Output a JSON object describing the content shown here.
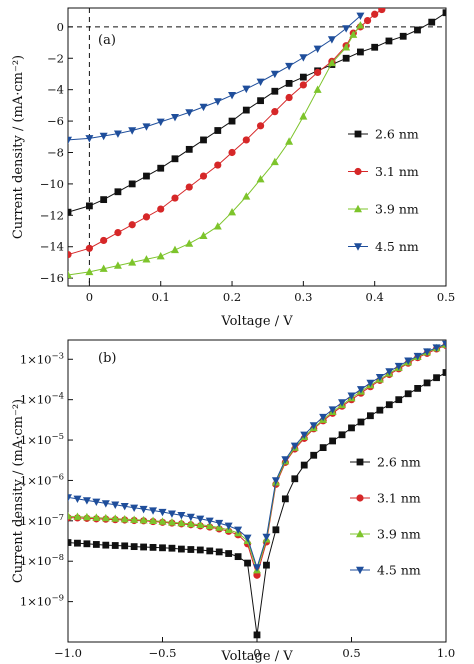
{
  "chart_data": [
    {
      "type": "line",
      "panel_label": "(a)",
      "xlabel": "Voltage / V",
      "ylabel": "Current density / (mA·cm⁻²)",
      "xlim": [
        -0.03,
        0.5
      ],
      "ylim": [
        -16.5,
        1.2
      ],
      "x_ticks": [
        0,
        0.1,
        0.2,
        0.3,
        0.4,
        0.5
      ],
      "x_tick_labels": [
        "0",
        "0.1",
        "0.2",
        "0.3",
        "0.4",
        "0.5"
      ],
      "y_ticks": [
        -16,
        -14,
        -12,
        -10,
        -8,
        -6,
        -4,
        -2,
        0
      ],
      "y_tick_labels": [
        "−16",
        "−14",
        "−12",
        "−10",
        "−8",
        "−6",
        "−4",
        "−2",
        "0"
      ],
      "grid": false,
      "reference_lines": [
        "x=0 dashed",
        "y=0 dashed"
      ],
      "legend_position": "right",
      "series": [
        {
          "name": "2.6 nm",
          "color": "#111111",
          "marker": "square",
          "x": [
            -0.03,
            0.0,
            0.02,
            0.04,
            0.06,
            0.08,
            0.1,
            0.12,
            0.14,
            0.16,
            0.18,
            0.2,
            0.22,
            0.24,
            0.26,
            0.28,
            0.3,
            0.32,
            0.34,
            0.36,
            0.38,
            0.4,
            0.42,
            0.44,
            0.46,
            0.48,
            0.5
          ],
          "y": [
            -11.8,
            -11.4,
            -11.0,
            -10.5,
            -10.0,
            -9.5,
            -9.0,
            -8.4,
            -7.8,
            -7.2,
            -6.6,
            -6.0,
            -5.3,
            -4.7,
            -4.1,
            -3.6,
            -3.2,
            -2.8,
            -2.4,
            -2.0,
            -1.6,
            -1.3,
            -0.9,
            -0.6,
            -0.2,
            0.3,
            0.9
          ]
        },
        {
          "name": "3.1 nm",
          "color": "#d62728",
          "marker": "circle",
          "x": [
            -0.03,
            0.0,
            0.02,
            0.04,
            0.06,
            0.08,
            0.1,
            0.12,
            0.14,
            0.16,
            0.18,
            0.2,
            0.22,
            0.24,
            0.26,
            0.28,
            0.3,
            0.32,
            0.34,
            0.36,
            0.37,
            0.38,
            0.39,
            0.4,
            0.41
          ],
          "y": [
            -14.5,
            -14.1,
            -13.6,
            -13.1,
            -12.6,
            -12.1,
            -11.6,
            -10.9,
            -10.2,
            -9.5,
            -8.8,
            -8.0,
            -7.2,
            -6.3,
            -5.4,
            -4.5,
            -3.7,
            -2.9,
            -2.2,
            -1.2,
            -0.4,
            0.0,
            0.4,
            0.8,
            1.1
          ]
        },
        {
          "name": "3.9 nm",
          "color": "#7dc42b",
          "marker": "triangle-up",
          "x": [
            -0.03,
            0.0,
            0.02,
            0.04,
            0.06,
            0.08,
            0.1,
            0.12,
            0.14,
            0.16,
            0.18,
            0.2,
            0.22,
            0.24,
            0.26,
            0.28,
            0.3,
            0.32,
            0.34,
            0.36,
            0.37,
            0.38
          ],
          "y": [
            -15.8,
            -15.6,
            -15.4,
            -15.2,
            -15.0,
            -14.8,
            -14.6,
            -14.2,
            -13.8,
            -13.3,
            -12.7,
            -11.8,
            -10.8,
            -9.7,
            -8.6,
            -7.3,
            -5.7,
            -4.0,
            -2.3,
            -1.3,
            -0.5,
            0.1
          ]
        },
        {
          "name": "4.5 nm",
          "color": "#1f4e9b",
          "marker": "triangle-down",
          "x": [
            -0.03,
            0.0,
            0.02,
            0.04,
            0.06,
            0.08,
            0.1,
            0.12,
            0.14,
            0.16,
            0.18,
            0.2,
            0.22,
            0.24,
            0.26,
            0.28,
            0.3,
            0.32,
            0.34,
            0.36,
            0.38
          ],
          "y": [
            -7.2,
            -7.1,
            -6.95,
            -6.8,
            -6.6,
            -6.35,
            -6.05,
            -5.75,
            -5.45,
            -5.1,
            -4.75,
            -4.35,
            -3.95,
            -3.5,
            -3.0,
            -2.5,
            -1.95,
            -1.4,
            -0.8,
            -0.1,
            0.7
          ]
        }
      ]
    },
    {
      "type": "line",
      "panel_label": "(b)",
      "xlabel": "Voltage / V",
      "ylabel": "Current density / (mA·cm⁻²)",
      "xlim": [
        -1.0,
        1.0
      ],
      "y_scale": "log",
      "ylim": [
        1e-10,
        0.003
      ],
      "x_ticks": [
        -1.0,
        -0.5,
        0.0,
        0.5,
        1.0
      ],
      "x_tick_labels": [
        "−1.0",
        "−0.5",
        "0",
        "0.5",
        "1.0"
      ],
      "y_ticks": [
        1e-09,
        1e-08,
        1e-07,
        1e-06,
        1e-05,
        0.0001,
        0.001
      ],
      "y_tick_bases": [
        "1×10",
        "1×10",
        "1×10",
        "1×10",
        "1×10",
        "1×10",
        "1×10"
      ],
      "y_tick_exponents": [
        "−9",
        "−8",
        "−7",
        "−6",
        "−5",
        "−4",
        "−3"
      ],
      "grid": false,
      "legend_position": "right",
      "series": [
        {
          "name": "2.6 nm",
          "color": "#111111",
          "marker": "square",
          "x": [
            -1.0,
            -0.95,
            -0.9,
            -0.85,
            -0.8,
            -0.75,
            -0.7,
            -0.65,
            -0.6,
            -0.55,
            -0.5,
            -0.45,
            -0.4,
            -0.35,
            -0.3,
            -0.25,
            -0.2,
            -0.15,
            -0.1,
            -0.05,
            0.0,
            0.05,
            0.1,
            0.15,
            0.2,
            0.25,
            0.3,
            0.35,
            0.4,
            0.45,
            0.5,
            0.55,
            0.6,
            0.65,
            0.7,
            0.75,
            0.8,
            0.85,
            0.9,
            0.95,
            1.0
          ],
          "y": [
            2.9e-08,
            2.8e-08,
            2.7e-08,
            2.6e-08,
            2.5e-08,
            2.45e-08,
            2.4e-08,
            2.3e-08,
            2.25e-08,
            2.2e-08,
            2.15e-08,
            2.1e-08,
            2e-08,
            1.95e-08,
            1.9e-08,
            1.8e-08,
            1.7e-08,
            1.55e-08,
            1.3e-08,
            9e-09,
            1.5e-10,
            8e-09,
            6e-08,
            3.5e-07,
            1.1e-06,
            2.4e-06,
            4.2e-06,
            6.5e-06,
            9.5e-06,
            1.35e-05,
            2e-05,
            2.8e-05,
            4e-05,
            5.5e-05,
            7.5e-05,
            0.0001,
            0.00014,
            0.00019,
            0.00026,
            0.00035,
            0.00047
          ]
        },
        {
          "name": "3.1 nm",
          "color": "#d62728",
          "marker": "circle",
          "x": [
            -1.0,
            -0.95,
            -0.9,
            -0.85,
            -0.8,
            -0.75,
            -0.7,
            -0.65,
            -0.6,
            -0.55,
            -0.5,
            -0.45,
            -0.4,
            -0.35,
            -0.3,
            -0.25,
            -0.2,
            -0.15,
            -0.1,
            -0.05,
            0.0,
            0.05,
            0.1,
            0.15,
            0.2,
            0.25,
            0.3,
            0.35,
            0.4,
            0.45,
            0.5,
            0.55,
            0.6,
            0.65,
            0.7,
            0.75,
            0.8,
            0.85,
            0.9,
            0.95,
            1.0
          ],
          "y": [
            1.2e-07,
            1.18e-07,
            1.15e-07,
            1.12e-07,
            1.1e-07,
            1.07e-07,
            1.05e-07,
            1.02e-07,
            1e-07,
            9.6e-08,
            9.2e-08,
            8.8e-08,
            8.4e-08,
            8e-08,
            7.5e-08,
            7e-08,
            6.3e-08,
            5.5e-08,
            4.5e-08,
            2.7e-08,
            4.5e-09,
            3e-08,
            8e-07,
            2.8e-06,
            6e-06,
            1.1e-05,
            1.9e-05,
            3e-05,
            4.6e-05,
            6.9e-05,
            0.0001,
            0.000145,
            0.00021,
            0.0003,
            0.00042,
            0.00058,
            0.0008,
            0.0011,
            0.0014,
            0.0018,
            0.0022
          ]
        },
        {
          "name": "3.9 nm",
          "color": "#7dc42b",
          "marker": "triangle-up",
          "x": [
            -1.0,
            -0.95,
            -0.9,
            -0.85,
            -0.8,
            -0.75,
            -0.7,
            -0.65,
            -0.6,
            -0.55,
            -0.5,
            -0.45,
            -0.4,
            -0.35,
            -0.3,
            -0.25,
            -0.2,
            -0.15,
            -0.1,
            -0.05,
            0.0,
            0.05,
            0.1,
            0.15,
            0.2,
            0.25,
            0.3,
            0.35,
            0.4,
            0.45,
            0.5,
            0.55,
            0.6,
            0.65,
            0.7,
            0.75,
            0.8,
            0.85,
            0.9,
            0.95,
            1.0
          ],
          "y": [
            1.3e-07,
            1.27e-07,
            1.24e-07,
            1.2e-07,
            1.17e-07,
            1.14e-07,
            1.1e-07,
            1.07e-07,
            1.04e-07,
            1e-07,
            9.6e-08,
            9.2e-08,
            8.8e-08,
            8.4e-08,
            8e-08,
            7.5e-08,
            6.8e-08,
            6e-08,
            5e-08,
            3.2e-08,
            6e-09,
            3.5e-08,
            9e-07,
            3e-06,
            6.5e-06,
            1.2e-05,
            2e-05,
            3.2e-05,
            5e-05,
            7.4e-05,
            0.00011,
            0.00016,
            0.00023,
            0.00032,
            0.00045,
            0.00062,
            0.00085,
            0.00115,
            0.0015,
            0.0019,
            0.0023
          ]
        },
        {
          "name": "4.5 nm",
          "color": "#1f4e9b",
          "marker": "triangle-down",
          "x": [
            -1.0,
            -0.95,
            -0.9,
            -0.85,
            -0.8,
            -0.75,
            -0.7,
            -0.65,
            -0.6,
            -0.55,
            -0.5,
            -0.45,
            -0.4,
            -0.35,
            -0.3,
            -0.25,
            -0.2,
            -0.15,
            -0.1,
            -0.05,
            0.0,
            0.05,
            0.1,
            0.15,
            0.2,
            0.25,
            0.3,
            0.35,
            0.4,
            0.45,
            0.5,
            0.55,
            0.6,
            0.65,
            0.7,
            0.75,
            0.8,
            0.85,
            0.9,
            0.95,
            1.0
          ],
          "y": [
            3.8e-07,
            3.5e-07,
            3.2e-07,
            2.95e-07,
            2.7e-07,
            2.5e-07,
            2.3e-07,
            2.1e-07,
            1.95e-07,
            1.8e-07,
            1.65e-07,
            1.5e-07,
            1.38e-07,
            1.25e-07,
            1.12e-07,
            1e-07,
            8.8e-08,
            7.5e-08,
            6e-08,
            3.8e-08,
            7e-09,
            4e-08,
            1e-06,
            3.3e-06,
            7.2e-06,
            1.35e-05,
            2.3e-05,
            3.7e-05,
            5.7e-05,
            8.5e-05,
            0.000125,
            0.00018,
            0.00026,
            0.00036,
            0.0005,
            0.00068,
            0.00092,
            0.0012,
            0.00155,
            0.00195,
            0.0024
          ]
        }
      ]
    }
  ]
}
